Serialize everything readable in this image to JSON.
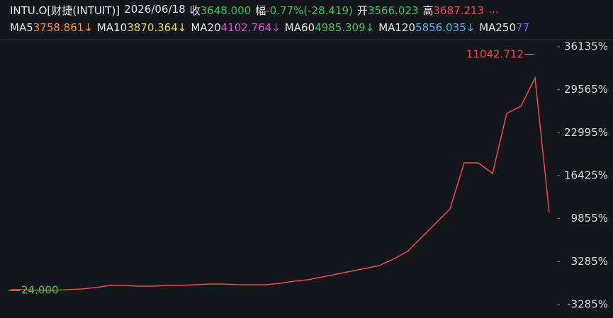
{
  "header": {
    "code": "INTU.O[财捷(INTUIT)]",
    "date": "2026/06/18",
    "items": [
      {
        "label": "收",
        "value": "3648.000"
      },
      {
        "label": "幅",
        "value": "-0.77%(-28.419)"
      },
      {
        "label": "开",
        "value": "3566.023"
      },
      {
        "label": "高",
        "value": "3687.213"
      }
    ],
    "more": "...",
    "ma": [
      {
        "label": "MA5",
        "value": "3758.861↓",
        "color": "#ff8c2a"
      },
      {
        "label": "MA10",
        "value": "3870.364↓",
        "color": "#e8d44d"
      },
      {
        "label": "MA20",
        "value": "4102.764↓",
        "color": "#d24dd8"
      },
      {
        "label": "MA60",
        "value": "4985.309↓",
        "color": "#3bc25a"
      },
      {
        "label": "MA120",
        "value": "5856.035↓",
        "color": "#4ab8e8"
      },
      {
        "label": "MA250",
        "value": "77",
        "color": "#5a6cff"
      }
    ]
  },
  "chart_data": {
    "type": "line",
    "color": "#e8484e",
    "values": [
      -1010,
      -1010,
      -1120,
      -1120,
      -1010,
      -900,
      -690,
      -360,
      -360,
      -470,
      -470,
      -360,
      -360,
      -260,
      -150,
      -150,
      -260,
      -260,
      -260,
      -40,
      290,
      510,
      940,
      1370,
      1800,
      2240,
      2670,
      3650,
      4830,
      7000,
      9170,
      11330,
      18370,
      18370,
      16750,
      25950,
      27040,
      31370,
      10790
    ],
    "ylim": [
      -4370,
      37000
    ],
    "yticks": [
      {
        "value": 36135,
        "label": "36135%"
      },
      {
        "value": 29565,
        "label": "29565%"
      },
      {
        "value": 22995,
        "label": "22995%"
      },
      {
        "value": 16425,
        "label": "16425%"
      },
      {
        "value": 9855,
        "label": "9855%"
      },
      {
        "value": 3285,
        "label": "3285%"
      },
      {
        "value": -3285,
        "label": "-3285%"
      }
    ],
    "annotations": [
      "11042.712",
      "24.000"
    ]
  }
}
